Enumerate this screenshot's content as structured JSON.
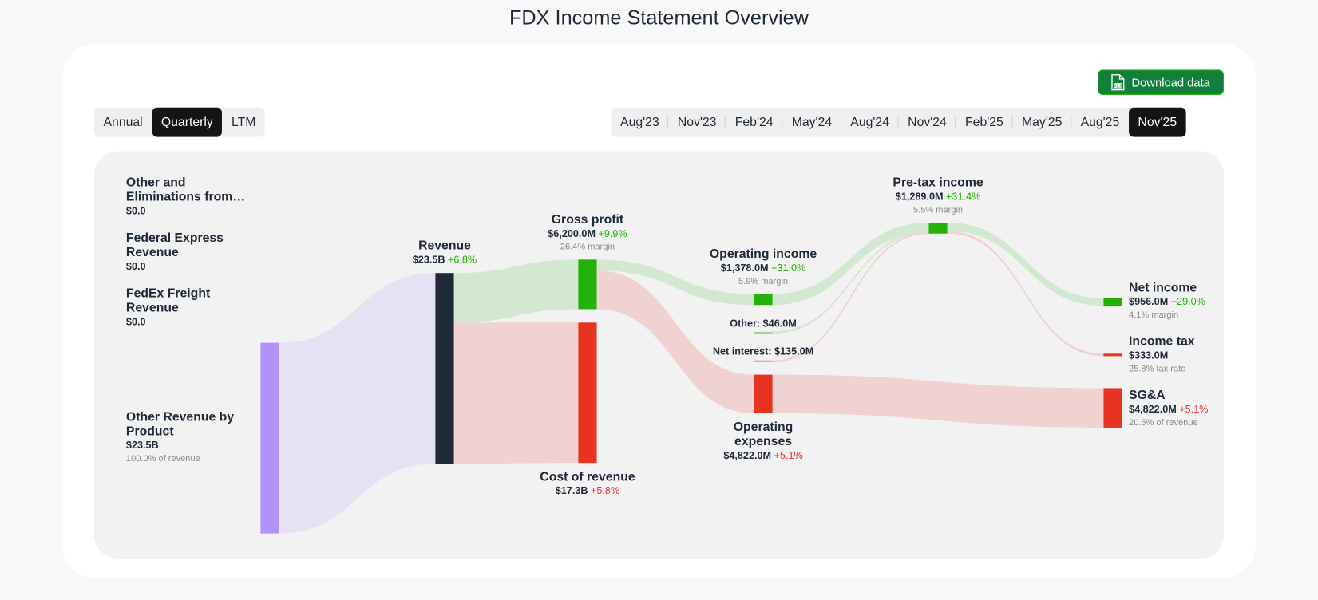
{
  "page_title": "FDX Income Statement Overview",
  "download_label": "Download data",
  "period_types": [
    "Annual",
    "Quarterly",
    "LTM"
  ],
  "active_period_type": "Quarterly",
  "periods": [
    "Aug'23",
    "Nov'23",
    "Feb'24",
    "May'24",
    "Aug'24",
    "Nov'24",
    "Feb'25",
    "May'25",
    "Aug'25",
    "Nov'25"
  ],
  "active_period": "Nov'25",
  "colors": {
    "revenue_source": "#b391fb",
    "revenue": "#1f2937",
    "profit": "#22b20a",
    "cost": "#e83323",
    "source_link": "#e6e1f3",
    "profit_link": "#d3e8d0",
    "cost_link": "#f0d3d0"
  },
  "chart_data": {
    "type": "sankey",
    "title": "FDX Income Statement Overview",
    "units": "USD",
    "nodes": {
      "elim": {
        "label": "Other and Eliminations from…",
        "line1": "Other and",
        "line2": "Eliminations from…",
        "value": "$0.0"
      },
      "fedexp": {
        "label": "Federal Express Revenue",
        "line1": "Federal Express",
        "line2": "Revenue",
        "value": "$0.0"
      },
      "freight": {
        "label": "FedEx Freight Revenue",
        "line1": "FedEx Freight",
        "line2": "Revenue",
        "value": "$0.0"
      },
      "otherrev": {
        "label": "Other Revenue by Product",
        "line1": "Other Revenue by",
        "line2": "Product",
        "value": "$23.5B",
        "sub": "100.0% of revenue",
        "amount": 23500
      },
      "revenue": {
        "label": "Revenue",
        "value": "$23.5B",
        "change": "+6.8%",
        "amount": 23500
      },
      "gross": {
        "label": "Gross profit",
        "value": "$6,200.0M",
        "change": "+9.9%",
        "sub": "26.4% margin",
        "amount": 6200
      },
      "cor": {
        "label": "Cost of revenue",
        "value": "$17.3B",
        "change": "+5.8%",
        "amount": 17300
      },
      "opinc": {
        "label": "Operating income",
        "value": "$1,378.0M",
        "change": "+31.0%",
        "sub": "5.9% margin",
        "amount": 1378
      },
      "other": {
        "label": "Other: $46.0M",
        "amount": 46
      },
      "netint": {
        "label": "Net interest: $135.0M",
        "amount": 135
      },
      "opex": {
        "label": "Operating expenses",
        "line1": "Operating",
        "line2": "expenses",
        "value": "$4,822.0M",
        "change": "+5.1%",
        "amount": 4822
      },
      "pretax": {
        "label": "Pre-tax income",
        "value": "$1,289.0M",
        "change": "+31.4%",
        "sub": "5.5% margin",
        "amount": 1289
      },
      "net": {
        "label": "Net income",
        "value": "$956.0M",
        "change": "+29.0%",
        "sub": "4.1% margin",
        "amount": 956
      },
      "tax": {
        "label": "Income tax",
        "value": "$333.0M",
        "sub": "25.8% tax rate",
        "amount": 333
      },
      "sga": {
        "label": "SG&A",
        "value": "$4,822.0M",
        "change": "+5.1%",
        "sub": "20.5% of revenue",
        "amount": 4822
      }
    },
    "links": [
      {
        "from": "otherrev",
        "to": "revenue",
        "amount": 23500,
        "kind": "source"
      },
      {
        "from": "revenue",
        "to": "gross",
        "amount": 6200,
        "kind": "profit"
      },
      {
        "from": "revenue",
        "to": "cor",
        "amount": 17300,
        "kind": "cost"
      },
      {
        "from": "gross",
        "to": "opinc",
        "amount": 1378,
        "kind": "profit"
      },
      {
        "from": "gross",
        "to": "opex",
        "amount": 4822,
        "kind": "cost"
      },
      {
        "from": "opinc",
        "to": "pretax",
        "amount": 1378,
        "kind": "profit"
      },
      {
        "from": "other",
        "to": "pretax",
        "amount": 46,
        "kind": "profit"
      },
      {
        "from": "netint",
        "to": "pretax",
        "amount": 135,
        "kind": "cost"
      },
      {
        "from": "pretax",
        "to": "net",
        "amount": 956,
        "kind": "profit"
      },
      {
        "from": "pretax",
        "to": "tax",
        "amount": 333,
        "kind": "cost"
      },
      {
        "from": "opex",
        "to": "sga",
        "amount": 4822,
        "kind": "cost"
      }
    ]
  }
}
